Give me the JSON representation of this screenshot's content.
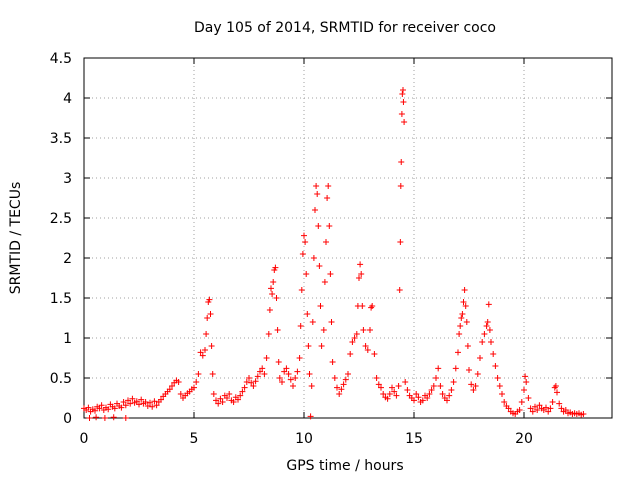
{
  "chart_data": {
    "type": "scatter",
    "title": "Day 105 of 2014, SRMTID for receiver coco",
    "xlabel": "GPS time / hours",
    "ylabel": "SRMTID / TECUs",
    "xlim": [
      0,
      24
    ],
    "ylim": [
      0,
      4.5
    ],
    "x_ticks": [
      0,
      5,
      10,
      15,
      20
    ],
    "x_tick_labels": [
      "0",
      "5",
      "10",
      "15",
      "20"
    ],
    "y_ticks": [
      0,
      0.5,
      1,
      1.5,
      2,
      2.5,
      3,
      3.5,
      4,
      4.5
    ],
    "y_tick_labels": [
      "0",
      "0.5",
      "1",
      "1.5",
      "2",
      "2.5",
      "3",
      "3.5",
      "4",
      "4.5"
    ],
    "grid": true,
    "marker": "+",
    "color": "#ff0000",
    "series": [
      {
        "name": "SRMTID",
        "points": [
          [
            0.0,
            0.12
          ],
          [
            0.1,
            0.1
          ],
          [
            0.2,
            0.13
          ],
          [
            0.3,
            0.08
          ],
          [
            0.4,
            0.11
          ],
          [
            0.5,
            0.09
          ],
          [
            0.6,
            0.14
          ],
          [
            0.7,
            0.12
          ],
          [
            0.8,
            0.16
          ],
          [
            0.9,
            0.1
          ],
          [
            0.25,
            0.0
          ],
          [
            0.55,
            0.01
          ],
          [
            0.95,
            0.0
          ],
          [
            1.35,
            0.01
          ],
          [
            1.9,
            0.0
          ],
          [
            1.0,
            0.13
          ],
          [
            1.1,
            0.11
          ],
          [
            1.2,
            0.17
          ],
          [
            1.3,
            0.14
          ],
          [
            1.4,
            0.12
          ],
          [
            1.5,
            0.18
          ],
          [
            1.6,
            0.15
          ],
          [
            1.7,
            0.13
          ],
          [
            1.8,
            0.2
          ],
          [
            1.9,
            0.16
          ],
          [
            2.0,
            0.22
          ],
          [
            2.1,
            0.18
          ],
          [
            2.2,
            0.24
          ],
          [
            2.3,
            0.19
          ],
          [
            2.4,
            0.21
          ],
          [
            2.5,
            0.17
          ],
          [
            2.6,
            0.23
          ],
          [
            2.7,
            0.18
          ],
          [
            2.8,
            0.2
          ],
          [
            2.9,
            0.15
          ],
          [
            3.0,
            0.19
          ],
          [
            3.1,
            0.14
          ],
          [
            3.2,
            0.21
          ],
          [
            3.3,
            0.16
          ],
          [
            3.4,
            0.2
          ],
          [
            3.5,
            0.23
          ],
          [
            3.6,
            0.27
          ],
          [
            3.7,
            0.3
          ],
          [
            3.8,
            0.33
          ],
          [
            3.9,
            0.36
          ],
          [
            4.0,
            0.4
          ],
          [
            4.1,
            0.44
          ],
          [
            4.2,
            0.47
          ],
          [
            4.3,
            0.45
          ],
          [
            4.4,
            0.3
          ],
          [
            4.5,
            0.25
          ],
          [
            4.6,
            0.28
          ],
          [
            4.7,
            0.31
          ],
          [
            4.8,
            0.33
          ],
          [
            4.9,
            0.36
          ],
          [
            5.0,
            0.38
          ],
          [
            5.1,
            0.45
          ],
          [
            5.2,
            0.55
          ],
          [
            5.3,
            0.82
          ],
          [
            5.4,
            0.78
          ],
          [
            5.5,
            0.85
          ],
          [
            5.55,
            1.05
          ],
          [
            5.6,
            1.25
          ],
          [
            5.65,
            1.45
          ],
          [
            5.7,
            1.48
          ],
          [
            5.75,
            1.3
          ],
          [
            5.8,
            0.9
          ],
          [
            5.85,
            0.55
          ],
          [
            5.9,
            0.3
          ],
          [
            6.0,
            0.22
          ],
          [
            6.1,
            0.18
          ],
          [
            6.2,
            0.24
          ],
          [
            6.3,
            0.2
          ],
          [
            6.4,
            0.28
          ],
          [
            6.5,
            0.25
          ],
          [
            6.6,
            0.3
          ],
          [
            6.7,
            0.22
          ],
          [
            6.8,
            0.2
          ],
          [
            6.9,
            0.26
          ],
          [
            7.0,
            0.23
          ],
          [
            7.1,
            0.28
          ],
          [
            7.2,
            0.33
          ],
          [
            7.3,
            0.38
          ],
          [
            7.4,
            0.45
          ],
          [
            7.5,
            0.5
          ],
          [
            7.6,
            0.44
          ],
          [
            7.7,
            0.4
          ],
          [
            7.8,
            0.46
          ],
          [
            7.9,
            0.52
          ],
          [
            8.0,
            0.58
          ],
          [
            8.1,
            0.62
          ],
          [
            8.2,
            0.55
          ],
          [
            8.3,
            0.75
          ],
          [
            8.4,
            1.05
          ],
          [
            8.45,
            1.35
          ],
          [
            8.5,
            1.62
          ],
          [
            8.55,
            1.55
          ],
          [
            8.6,
            1.7
          ],
          [
            8.65,
            1.85
          ],
          [
            8.7,
            1.88
          ],
          [
            8.75,
            1.5
          ],
          [
            8.8,
            1.1
          ],
          [
            8.85,
            0.7
          ],
          [
            8.9,
            0.5
          ],
          [
            9.0,
            0.45
          ],
          [
            9.1,
            0.58
          ],
          [
            9.2,
            0.62
          ],
          [
            9.3,
            0.55
          ],
          [
            9.4,
            0.48
          ],
          [
            9.5,
            0.4
          ],
          [
            9.6,
            0.5
          ],
          [
            9.7,
            0.58
          ],
          [
            9.8,
            0.75
          ],
          [
            9.85,
            1.15
          ],
          [
            9.9,
            1.6
          ],
          [
            9.95,
            2.05
          ],
          [
            10.0,
            2.28
          ],
          [
            10.05,
            2.2
          ],
          [
            10.1,
            1.8
          ],
          [
            10.15,
            1.3
          ],
          [
            10.2,
            0.9
          ],
          [
            10.25,
            0.55
          ],
          [
            10.3,
            0.02
          ],
          [
            10.35,
            0.4
          ],
          [
            10.4,
            1.2
          ],
          [
            10.45,
            2.0
          ],
          [
            10.5,
            2.6
          ],
          [
            10.55,
            2.9
          ],
          [
            10.6,
            2.8
          ],
          [
            10.65,
            2.4
          ],
          [
            10.7,
            1.9
          ],
          [
            10.75,
            1.4
          ],
          [
            10.8,
            0.9
          ],
          [
            10.9,
            1.1
          ],
          [
            10.95,
            1.7
          ],
          [
            11.0,
            2.2
          ],
          [
            11.05,
            2.75
          ],
          [
            11.1,
            2.9
          ],
          [
            11.15,
            2.4
          ],
          [
            11.2,
            1.8
          ],
          [
            11.25,
            1.2
          ],
          [
            11.3,
            0.7
          ],
          [
            11.4,
            0.5
          ],
          [
            11.5,
            0.38
          ],
          [
            11.6,
            0.3
          ],
          [
            11.7,
            0.36
          ],
          [
            11.8,
            0.42
          ],
          [
            11.9,
            0.48
          ],
          [
            12.0,
            0.55
          ],
          [
            12.1,
            0.8
          ],
          [
            12.2,
            0.95
          ],
          [
            12.3,
            1.0
          ],
          [
            12.4,
            1.05
          ],
          [
            12.45,
            1.4
          ],
          [
            12.5,
            1.75
          ],
          [
            12.55,
            1.92
          ],
          [
            12.6,
            1.8
          ],
          [
            12.65,
            1.4
          ],
          [
            12.7,
            1.1
          ],
          [
            12.8,
            0.9
          ],
          [
            12.9,
            0.85
          ],
          [
            13.0,
            1.1
          ],
          [
            13.05,
            1.38
          ],
          [
            13.1,
            1.4
          ],
          [
            13.2,
            0.8
          ],
          [
            13.3,
            0.5
          ],
          [
            13.4,
            0.42
          ],
          [
            13.5,
            0.38
          ],
          [
            13.6,
            0.3
          ],
          [
            13.7,
            0.26
          ],
          [
            13.8,
            0.24
          ],
          [
            13.9,
            0.3
          ],
          [
            14.0,
            0.38
          ],
          [
            14.1,
            0.33
          ],
          [
            14.2,
            0.28
          ],
          [
            14.3,
            0.4
          ],
          [
            14.35,
            1.6
          ],
          [
            14.38,
            2.2
          ],
          [
            14.4,
            2.9
          ],
          [
            14.42,
            3.2
          ],
          [
            14.45,
            3.8
          ],
          [
            14.47,
            4.05
          ],
          [
            14.5,
            4.1
          ],
          [
            14.52,
            3.95
          ],
          [
            14.55,
            3.7
          ],
          [
            14.6,
            0.45
          ],
          [
            14.7,
            0.35
          ],
          [
            14.8,
            0.28
          ],
          [
            14.9,
            0.25
          ],
          [
            15.0,
            0.22
          ],
          [
            15.1,
            0.3
          ],
          [
            15.2,
            0.26
          ],
          [
            15.3,
            0.2
          ],
          [
            15.4,
            0.22
          ],
          [
            15.5,
            0.28
          ],
          [
            15.6,
            0.25
          ],
          [
            15.7,
            0.3
          ],
          [
            15.8,
            0.35
          ],
          [
            15.9,
            0.4
          ],
          [
            16.0,
            0.5
          ],
          [
            16.1,
            0.62
          ],
          [
            16.2,
            0.4
          ],
          [
            16.3,
            0.3
          ],
          [
            16.4,
            0.25
          ],
          [
            16.5,
            0.22
          ],
          [
            16.6,
            0.28
          ],
          [
            16.7,
            0.35
          ],
          [
            16.8,
            0.45
          ],
          [
            16.9,
            0.62
          ],
          [
            17.0,
            0.82
          ],
          [
            17.05,
            1.05
          ],
          [
            17.1,
            1.15
          ],
          [
            17.15,
            1.25
          ],
          [
            17.2,
            1.3
          ],
          [
            17.25,
            1.45
          ],
          [
            17.3,
            1.6
          ],
          [
            17.35,
            1.4
          ],
          [
            17.4,
            1.2
          ],
          [
            17.45,
            0.9
          ],
          [
            17.5,
            0.6
          ],
          [
            17.6,
            0.42
          ],
          [
            17.7,
            0.35
          ],
          [
            17.8,
            0.4
          ],
          [
            17.9,
            0.55
          ],
          [
            18.0,
            0.75
          ],
          [
            18.1,
            0.95
          ],
          [
            18.2,
            1.05
          ],
          [
            18.3,
            1.15
          ],
          [
            18.35,
            1.2
          ],
          [
            18.4,
            1.42
          ],
          [
            18.45,
            1.1
          ],
          [
            18.5,
            0.95
          ],
          [
            18.6,
            0.8
          ],
          [
            18.7,
            0.65
          ],
          [
            18.8,
            0.5
          ],
          [
            18.9,
            0.4
          ],
          [
            19.0,
            0.3
          ],
          [
            19.1,
            0.2
          ],
          [
            19.2,
            0.15
          ],
          [
            19.3,
            0.12
          ],
          [
            19.4,
            0.08
          ],
          [
            19.5,
            0.06
          ],
          [
            19.6,
            0.05
          ],
          [
            19.7,
            0.08
          ],
          [
            19.8,
            0.1
          ],
          [
            19.9,
            0.2
          ],
          [
            20.0,
            0.35
          ],
          [
            20.05,
            0.52
          ],
          [
            20.1,
            0.45
          ],
          [
            20.2,
            0.25
          ],
          [
            20.3,
            0.12
          ],
          [
            20.4,
            0.08
          ],
          [
            20.5,
            0.14
          ],
          [
            20.6,
            0.1
          ],
          [
            20.7,
            0.16
          ],
          [
            20.8,
            0.12
          ],
          [
            20.9,
            0.1
          ],
          [
            21.0,
            0.13
          ],
          [
            21.1,
            0.08
          ],
          [
            21.2,
            0.12
          ],
          [
            21.3,
            0.2
          ],
          [
            21.4,
            0.38
          ],
          [
            21.45,
            0.4
          ],
          [
            21.5,
            0.32
          ],
          [
            21.6,
            0.18
          ],
          [
            21.7,
            0.12
          ],
          [
            21.8,
            0.08
          ],
          [
            21.9,
            0.1
          ],
          [
            22.0,
            0.06
          ],
          [
            22.1,
            0.07
          ],
          [
            22.2,
            0.05
          ],
          [
            22.3,
            0.06
          ],
          [
            22.4,
            0.05
          ],
          [
            22.5,
            0.06
          ],
          [
            22.6,
            0.04
          ],
          [
            22.7,
            0.05
          ]
        ]
      }
    ]
  }
}
